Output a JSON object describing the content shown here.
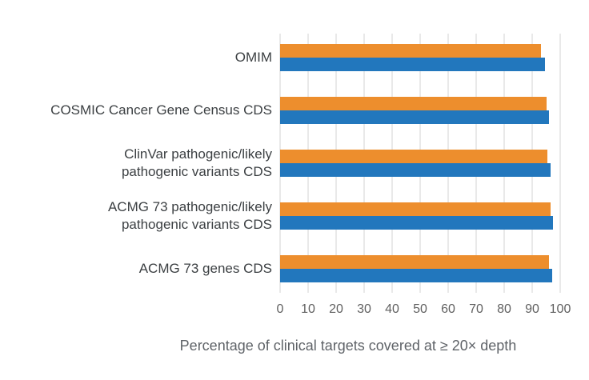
{
  "chart_data": {
    "type": "bar",
    "orientation": "horizontal",
    "title": "",
    "xlabel": "Percentage of clinical targets covered at ≥ 20× depth",
    "ylabel": "",
    "xlim": [
      0,
      100
    ],
    "xticks": [
      0,
      10,
      20,
      30,
      40,
      50,
      60,
      70,
      80,
      90,
      100
    ],
    "grid": "vertical-light-gray",
    "legend": "none",
    "categories": [
      "OMIM",
      "COSMIC Cancer Gene Census CDS",
      "ClinVar pathogenic/likely pathogenic variants CDS",
      "ACMG 73 pathogenic/likely pathogenic variants CDS",
      "ACMG 73 genes CDS"
    ],
    "category_label_lines": [
      [
        "OMIM"
      ],
      [
        "COSMIC Cancer Gene Census CDS"
      ],
      [
        "ClinVar pathogenic/likely",
        "pathogenic variants CDS"
      ],
      [
        "ACMG 73 pathogenic/likely",
        "pathogenic variants CDS"
      ],
      [
        "ACMG 73 genes CDS"
      ]
    ],
    "series": [
      {
        "name": "orange (top bar)",
        "color": "#ed8e2d",
        "values": [
          93.0,
          95.0,
          95.5,
          96.5,
          96.0
        ]
      },
      {
        "name": "blue (bottom bar)",
        "color": "#2277bd",
        "values": [
          94.5,
          96.0,
          96.5,
          97.5,
          97.0
        ]
      }
    ]
  },
  "colors": {
    "bar_orange": "#ed8e2d",
    "bar_blue": "#2277bd",
    "gridline": "#e9e9e9",
    "category_text": "#3c4043",
    "tick_text": "#616161",
    "axis_title_text": "#5f6368",
    "background": "#ffffff"
  }
}
